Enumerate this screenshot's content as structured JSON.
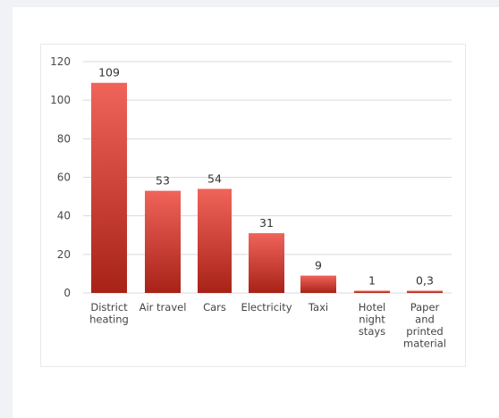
{
  "chart_data": {
    "type": "bar",
    "categories": [
      [
        "District",
        "heating"
      ],
      [
        "Air travel"
      ],
      [
        "Cars"
      ],
      [
        "Electricity"
      ],
      [
        "Taxi"
      ],
      [
        "Hotel",
        "night",
        "stays"
      ],
      [
        "Paper",
        "and",
        "printed",
        "material"
      ]
    ],
    "values": [
      109,
      53,
      54,
      31,
      9,
      1,
      0.3
    ],
    "data_labels": [
      "109",
      "53",
      "54",
      "31",
      "9",
      "1",
      "0,3"
    ],
    "y_ticks": [
      "0",
      "20",
      "40",
      "60",
      "80",
      "100",
      "120"
    ],
    "ylim": [
      0,
      120
    ],
    "grid": true,
    "colors": {
      "bar_top": "#f0645a",
      "bar_bottom": "#a82218",
      "grid": "#d9d9d9"
    }
  }
}
